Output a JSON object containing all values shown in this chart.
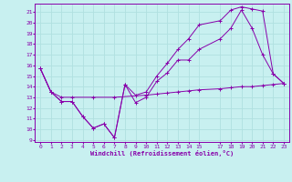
{
  "xlabel": "Windchill (Refroidissement éolien,°C)",
  "bg_color": "#c8f0f0",
  "grid_color": "#b0e0e0",
  "line_color": "#8800aa",
  "xlim": [
    -0.5,
    23.5
  ],
  "ylim": [
    8.8,
    21.8
  ],
  "xticks": [
    0,
    1,
    2,
    3,
    4,
    5,
    6,
    7,
    8,
    9,
    10,
    11,
    12,
    13,
    14,
    15,
    17,
    18,
    19,
    20,
    21,
    22,
    23
  ],
  "xtick_labels": [
    "0",
    "1",
    "2",
    "3",
    "4",
    "5",
    "6",
    "7",
    "8",
    "9",
    "10",
    "11",
    "12",
    "13",
    "14",
    "15",
    "17",
    "18",
    "19",
    "20",
    "21",
    "22",
    "23"
  ],
  "yticks": [
    9,
    10,
    11,
    12,
    13,
    14,
    15,
    16,
    17,
    18,
    19,
    20,
    21
  ],
  "line1_x": [
    0,
    1,
    2,
    3,
    4,
    5,
    6,
    7,
    8,
    9,
    10,
    11,
    12,
    13,
    14,
    15,
    17,
    18,
    19,
    20,
    21,
    22,
    23
  ],
  "line1_y": [
    15.7,
    13.5,
    12.6,
    12.6,
    11.2,
    10.1,
    10.5,
    9.2,
    14.2,
    12.5,
    13.0,
    14.5,
    15.3,
    16.5,
    16.5,
    17.5,
    18.5,
    19.5,
    21.2,
    19.5,
    17.0,
    15.2,
    14.3
  ],
  "line2_x": [
    0,
    1,
    2,
    3,
    4,
    5,
    6,
    7,
    8,
    9,
    10,
    11,
    12,
    13,
    14,
    15,
    17,
    18,
    19,
    20,
    21,
    22,
    23
  ],
  "line2_y": [
    15.7,
    13.5,
    12.6,
    12.6,
    11.2,
    10.1,
    10.5,
    9.2,
    14.2,
    13.2,
    13.5,
    15.0,
    16.2,
    17.5,
    18.5,
    19.8,
    20.2,
    21.2,
    21.5,
    21.3,
    21.1,
    15.2,
    14.3
  ],
  "line3_x": [
    0,
    1,
    2,
    3,
    5,
    7,
    10,
    11,
    12,
    13,
    14,
    15,
    17,
    18,
    19,
    20,
    21,
    22,
    23
  ],
  "line3_y": [
    15.7,
    13.5,
    13.0,
    13.0,
    13.0,
    13.0,
    13.2,
    13.3,
    13.4,
    13.5,
    13.6,
    13.7,
    13.8,
    13.9,
    14.0,
    14.0,
    14.1,
    14.2,
    14.3
  ]
}
